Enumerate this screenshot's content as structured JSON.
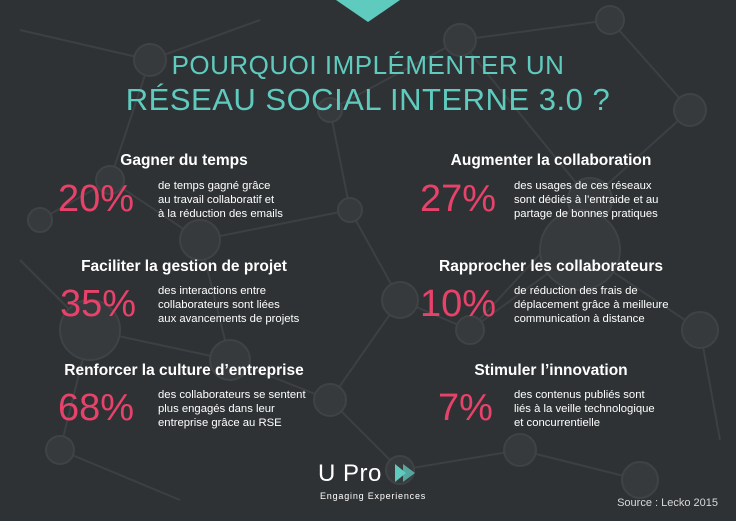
{
  "title": {
    "line1": "POURQUOI IMPLÉMENTER UN",
    "line2": "RÉSEAU SOCIAL INTERNE 3.0 ?"
  },
  "items": [
    {
      "heading": "Gagner du temps",
      "percent": "20%",
      "description": "de temps gagné grâce\nau travail collaboratif et\nà la réduction des emails"
    },
    {
      "heading": "Augmenter la collaboration",
      "percent": "27%",
      "description": "des usages de ces réseaux\nsont dédiés à l’entraide et au\npartage de bonnes pratiques"
    },
    {
      "heading": "Faciliter la gestion de projet",
      "percent": "35%",
      "description": "des interactions entre\ncollaborateurs sont liées\naux avancements de projets"
    },
    {
      "heading": "Rapprocher les collaborateurs",
      "percent": "10%",
      "description": "de réduction des frais de\ndéplacement grâce à meilleure\ncommunication à distance"
    },
    {
      "heading": "Renforcer la culture d’entreprise",
      "percent": "68%",
      "description": "des collaborateurs se sentent\nplus engagés dans leur\nentreprise grâce au RSE"
    },
    {
      "heading": "Stimuler l’innovation",
      "percent": "7%",
      "description": "des contenus publiés sont\nliés à la veille technologique\net concurrentielle"
    }
  ],
  "logo": {
    "name": "U Pro",
    "tagline": "Engaging Experiences"
  },
  "source": "Source : Lecko 2015",
  "colors": {
    "background": "#2f3234",
    "accent": "#5fcbbf",
    "percent": "#e8426a",
    "text": "#ffffff"
  }
}
